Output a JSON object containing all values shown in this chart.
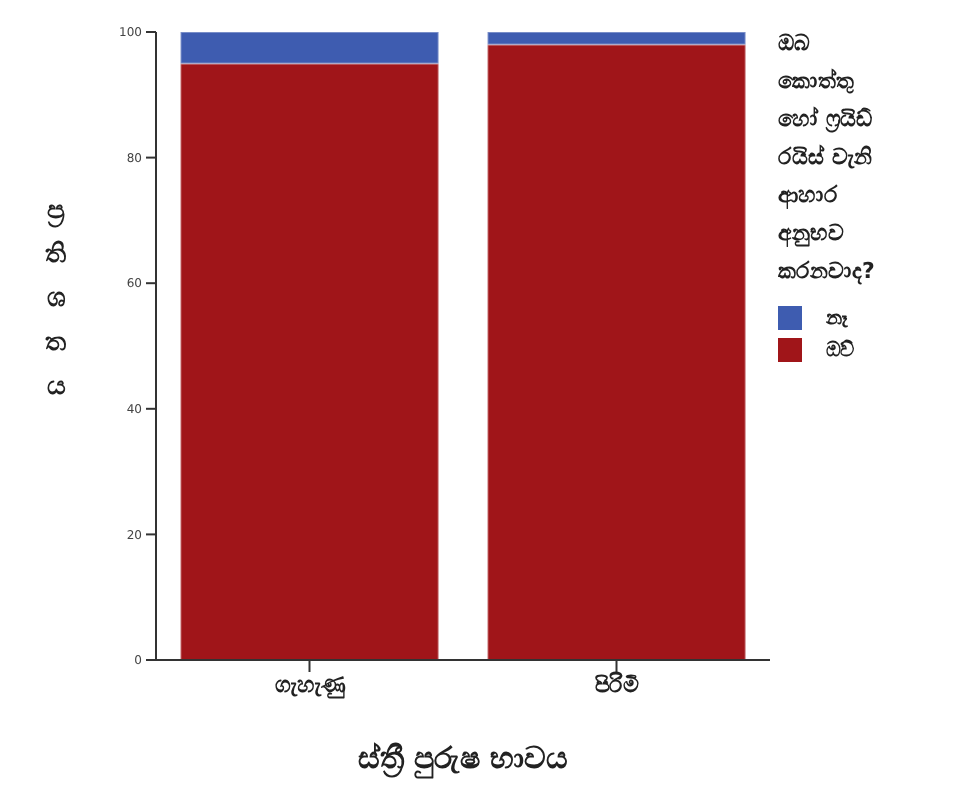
{
  "chart_data": {
    "type": "bar",
    "stacked": true,
    "categories": [
      "ගැහැණු",
      "පිරිමි"
    ],
    "series": [
      {
        "name": "ඔව්",
        "color": "#a01519",
        "values": [
          95,
          98
        ]
      },
      {
        "name": "නෑ",
        "color": "#3e5cb0",
        "values": [
          5,
          2
        ]
      }
    ],
    "xlabel": "ස්ත්‍රී පුරුෂ භාවය",
    "ylabel": "ප්‍ර\nති\nශ\nත\nය",
    "legend_title": "ඔබ\nකොත්තු\nහෝ ෆ්‍රයිඩ්\nරයිස් වැනි\nආහාර\nඅනුභව\nකරනවාද?",
    "ylim": [
      0,
      100
    ],
    "yticks": [
      0,
      20,
      40,
      60,
      80,
      100
    ],
    "grid": false,
    "legend": "right"
  }
}
